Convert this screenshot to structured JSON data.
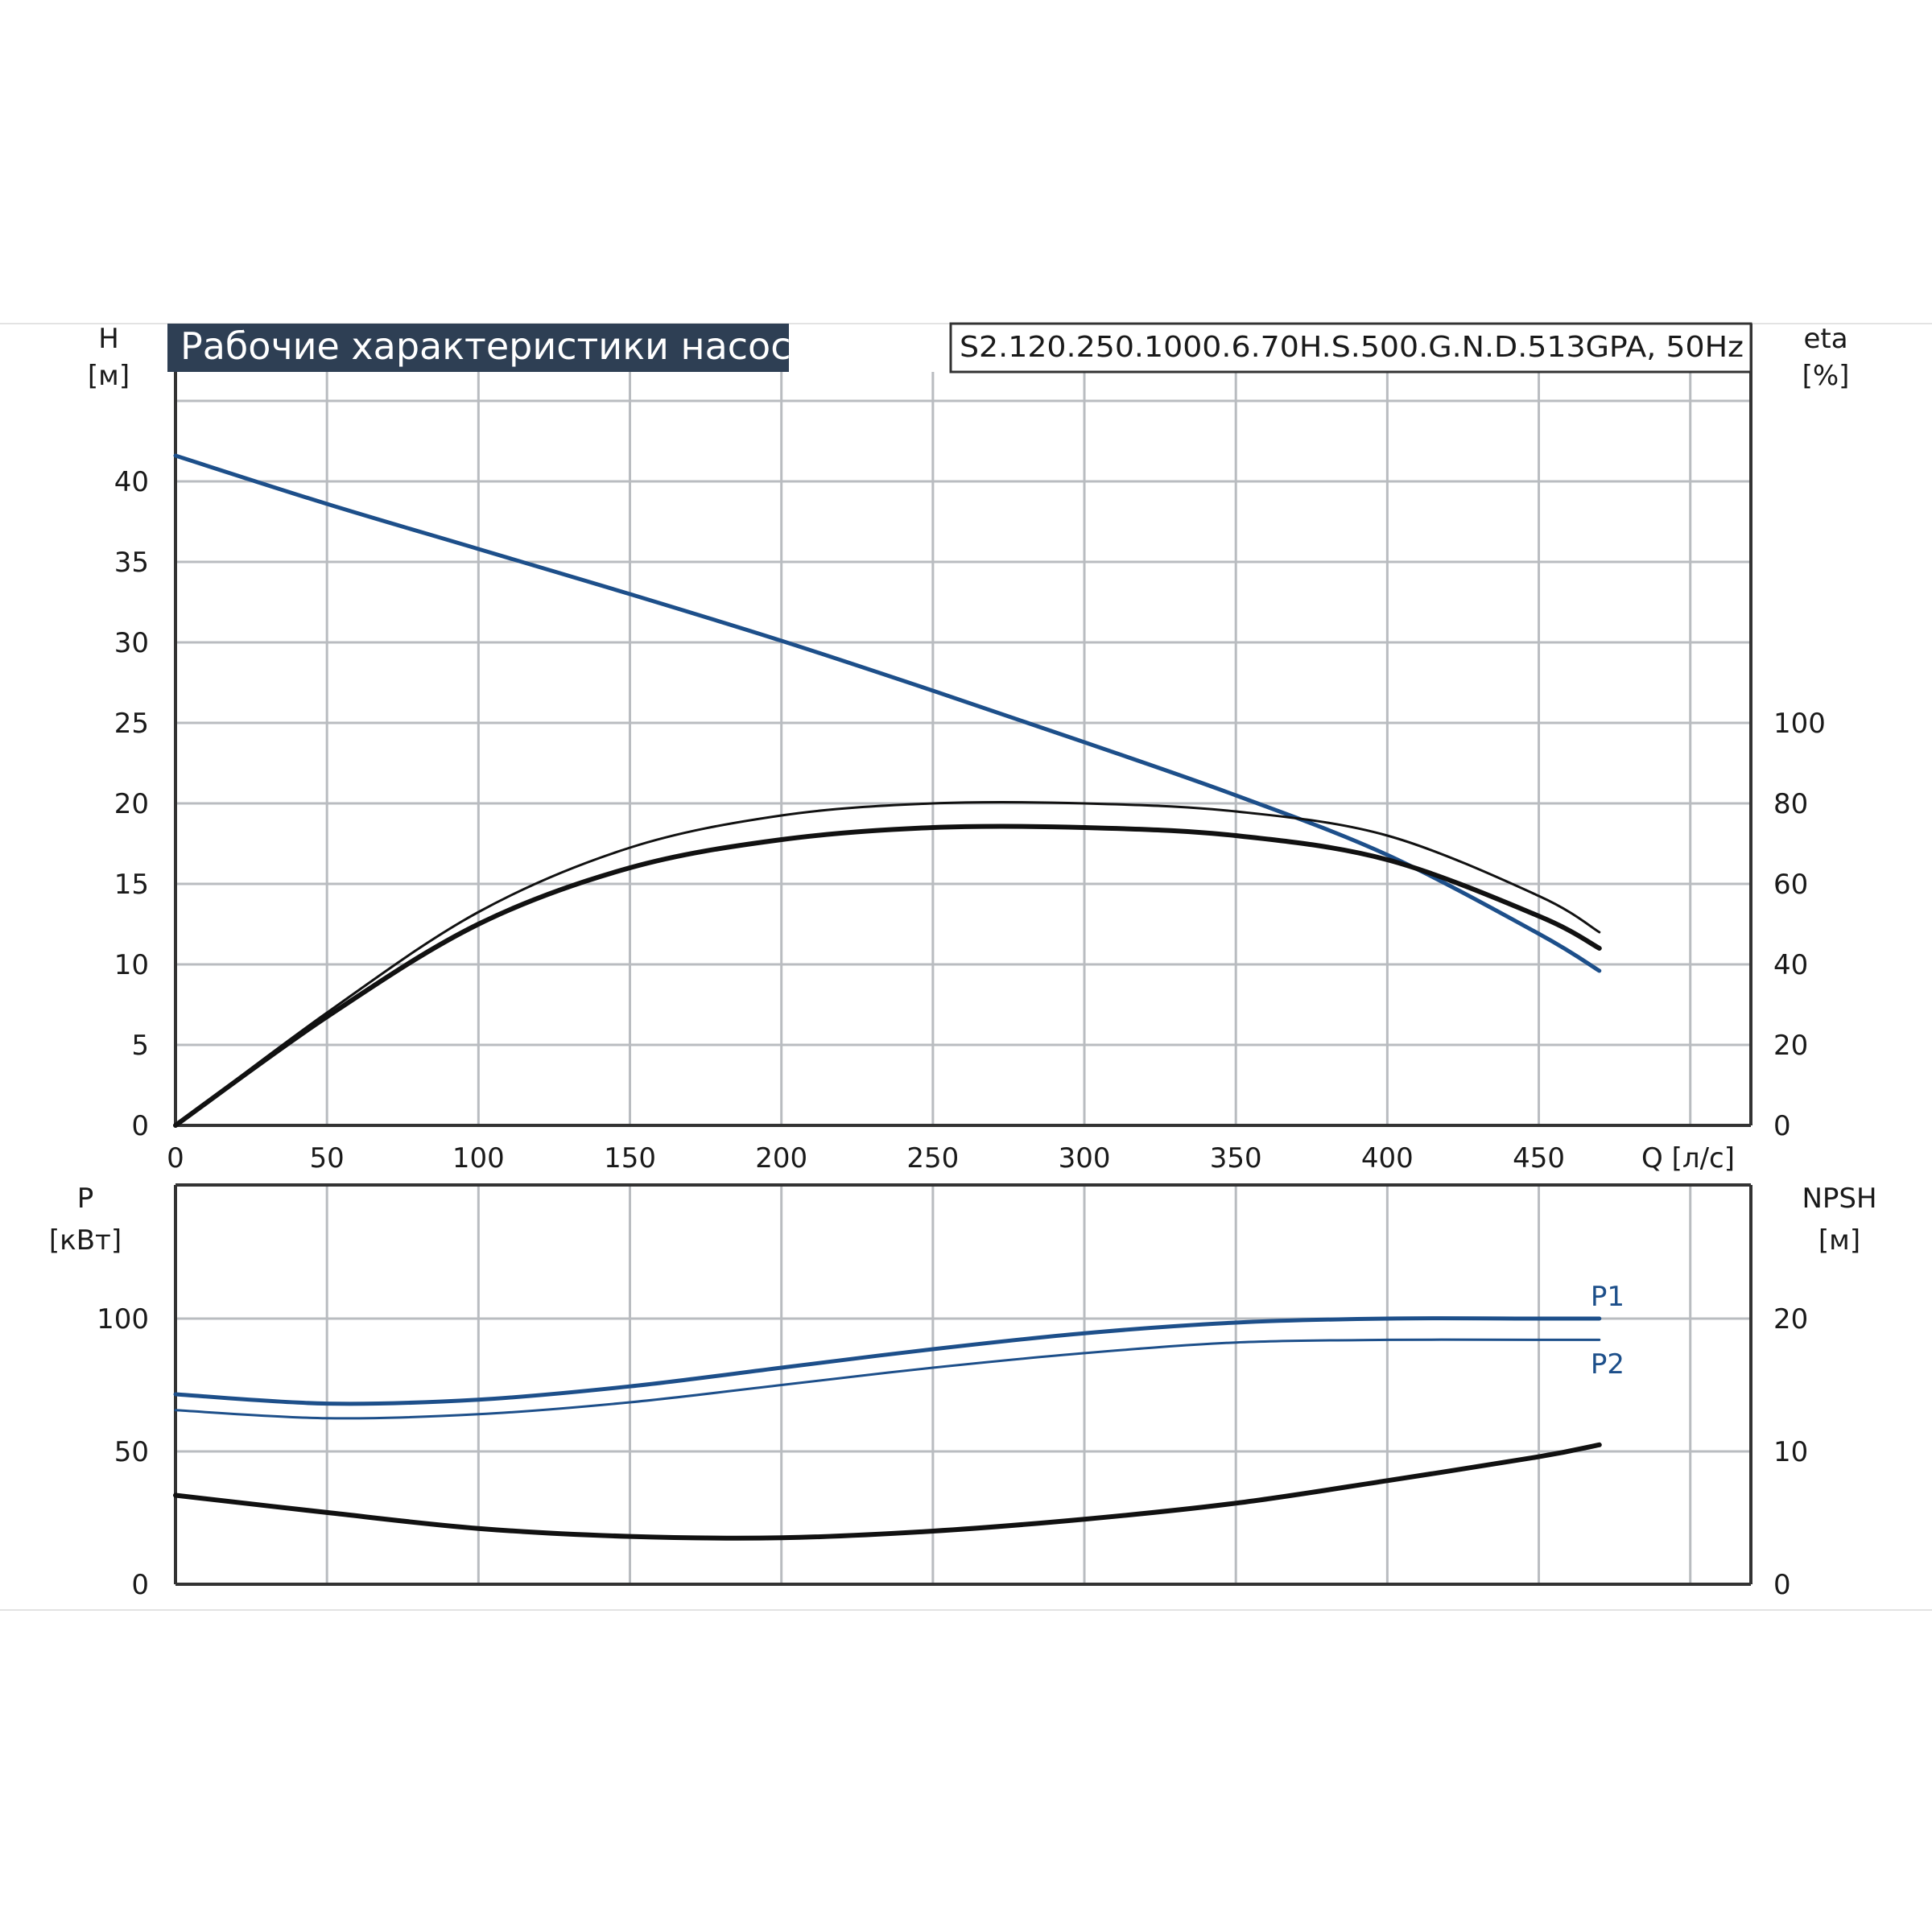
{
  "title": "Рабочие характеристики насоса",
  "model": "S2.120.250.1000.6.70H.S.500.G.N.D.513GPA, 50Hz",
  "colors": {
    "title_bg": "#2e3f54",
    "head_curve": "#1d4f8a",
    "power_curve": "#1d4f8a",
    "eta_curve": "#111111",
    "npsh_curve": "#111111",
    "grid": "#b9bcc0",
    "axis": "#333333"
  },
  "top": {
    "left_axis": {
      "label": "H",
      "unit": "[м]",
      "ticks": [
        "0",
        "5",
        "10",
        "15",
        "20",
        "25",
        "30",
        "35",
        "40"
      ]
    },
    "right_axis": {
      "label": "eta",
      "unit": "[%]",
      "ticks": [
        "0",
        "20",
        "40",
        "60",
        "80",
        "100"
      ]
    },
    "x_axis": {
      "label": "Q [л/с]",
      "ticks": [
        "0",
        "50",
        "100",
        "150",
        "200",
        "250",
        "300",
        "350",
        "400",
        "450"
      ]
    }
  },
  "bottom": {
    "left_axis": {
      "label": "P",
      "unit": "[кВт]",
      "ticks": [
        "0",
        "50",
        "100"
      ]
    },
    "right_axis": {
      "label": "NPSH",
      "unit": "[м]",
      "ticks": [
        "0",
        "10",
        "20"
      ]
    },
    "series_labels": {
      "p1": "P1",
      "p2": "P2"
    }
  },
  "chart_data": [
    {
      "type": "line",
      "title": "Рабочие характеристики насоса",
      "xlabel": "Q [л/с]",
      "xlim": [
        0,
        520
      ],
      "ylabel": "H [м]",
      "ylim": [
        0,
        45
      ],
      "y2label": "eta [%]",
      "y2lim": [
        0,
        180
      ],
      "grid": true,
      "series": [
        {
          "key": "head",
          "axis": "left",
          "color": "#1d4f8a",
          "width": 5,
          "x": [
            0,
            50,
            100,
            150,
            200,
            250,
            300,
            350,
            400,
            450,
            470
          ],
          "y": [
            41.6,
            38.6,
            35.8,
            33.0,
            30.1,
            27.0,
            23.8,
            20.5,
            16.8,
            11.9,
            9.6
          ]
        },
        {
          "key": "eta_thin",
          "axis": "right",
          "color": "#111111",
          "width": 3,
          "x": [
            0,
            50,
            100,
            150,
            200,
            250,
            300,
            350,
            400,
            450,
            470
          ],
          "y": [
            0,
            28,
            53,
            69,
            77,
            80,
            80,
            78,
            72,
            57,
            48
          ]
        },
        {
          "key": "eta_thick",
          "axis": "right",
          "color": "#111111",
          "width": 6,
          "x": [
            0,
            50,
            100,
            150,
            200,
            250,
            300,
            350,
            400,
            450,
            470
          ],
          "y": [
            0,
            27,
            50,
            64,
            71,
            74,
            74,
            72,
            66,
            52,
            44
          ]
        }
      ]
    },
    {
      "type": "line",
      "xlabel": "Q [л/с]",
      "xlim": [
        0,
        520
      ],
      "ylabel": "P [кВт]",
      "ylim": [
        0,
        150
      ],
      "y2label": "NPSH [м]",
      "y2lim": [
        0,
        30
      ],
      "grid": true,
      "series": [
        {
          "key": "p1",
          "name": "P1",
          "axis": "left",
          "color": "#1d4f8a",
          "width": 5,
          "x": [
            0,
            50,
            100,
            150,
            200,
            250,
            300,
            350,
            400,
            450,
            470
          ],
          "y": [
            71.5,
            68.0,
            69.5,
            74.5,
            81.5,
            88.5,
            94.5,
            98.5,
            100,
            100,
            100
          ]
        },
        {
          "key": "p2",
          "name": "P2",
          "axis": "left",
          "color": "#1d4f8a",
          "width": 3,
          "x": [
            0,
            50,
            100,
            150,
            200,
            250,
            300,
            350,
            400,
            450,
            470
          ],
          "y": [
            65.5,
            62.5,
            64.0,
            68.5,
            75.0,
            81.5,
            87.0,
            91.0,
            92.0,
            92.0,
            92.0
          ]
        },
        {
          "key": "npsh",
          "axis": "right",
          "color": "#111111",
          "width": 6,
          "x": [
            0,
            50,
            100,
            150,
            200,
            250,
            300,
            350,
            400,
            450,
            470
          ],
          "y": [
            6.7,
            5.4,
            4.2,
            3.6,
            3.5,
            4.0,
            4.9,
            6.1,
            7.8,
            9.6,
            10.5
          ]
        }
      ]
    }
  ]
}
